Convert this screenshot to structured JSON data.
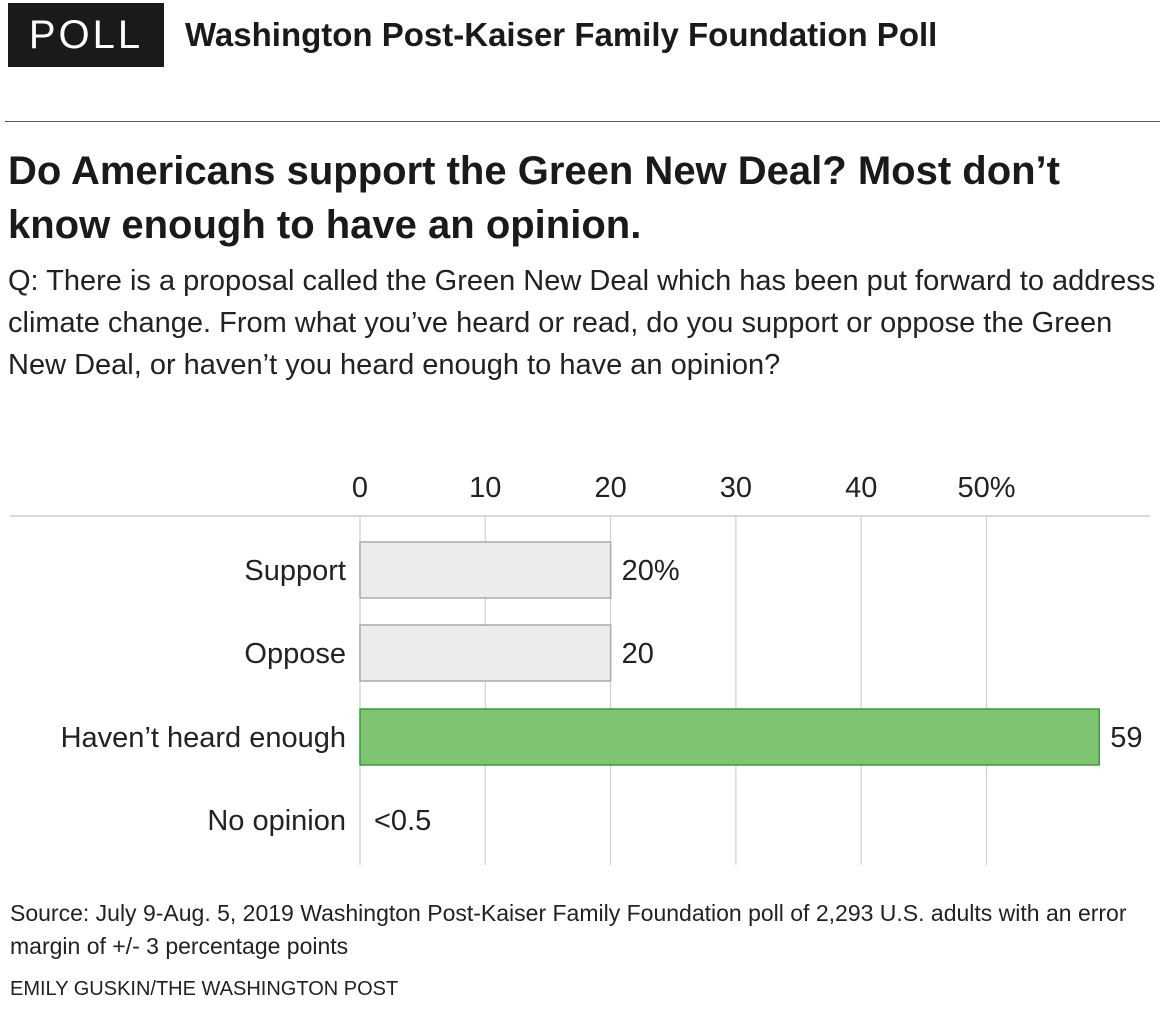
{
  "header": {
    "badge": "POLL",
    "poll_name": "Washington Post-Kaiser Family Foundation Poll"
  },
  "headline": "Do Americans support the Green New Deal? Most don’t know enough to have an opinion.",
  "question": "Q: There is a proposal called the Green New Deal which has been put forward to address climate change. From what you’ve heard or read, do you support or oppose the Green New Deal, or haven’t you heard enough to have an opinion?",
  "chart_data": {
    "type": "bar",
    "orientation": "horizontal",
    "categories": [
      "Support",
      "Oppose",
      "Haven’t heard enough",
      "No opinion"
    ],
    "values": [
      20,
      20,
      59,
      0.4
    ],
    "value_labels": [
      "20%",
      "20",
      "59",
      "<0.5"
    ],
    "highlight_index": 2,
    "xlim": [
      0,
      60
    ],
    "x_ticks": [
      0,
      10,
      20,
      30,
      40,
      50
    ],
    "x_tick_labels": [
      "0",
      "10",
      "20",
      "30",
      "40",
      "50%"
    ],
    "grid": true,
    "colors": {
      "bar": "#ececec",
      "bar_stroke": "#aaaaaa",
      "highlight": "#7fc472",
      "highlight_stroke": "#3c9a3a",
      "grid": "#d0d0d0",
      "axis": "#cccccc"
    }
  },
  "footer": {
    "source": "Source:  July 9-Aug. 5, 2019 Washington Post-Kaiser Family Foundation poll of 2,293 U.S. adults with an error margin of +/- 3 percentage points",
    "credit": "EMILY GUSKIN/THE WASHINGTON POST"
  }
}
